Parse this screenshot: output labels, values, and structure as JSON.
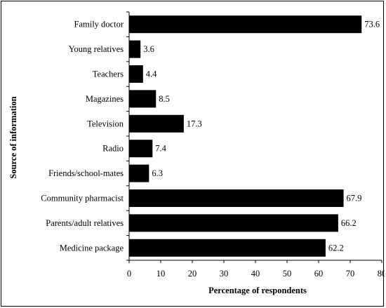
{
  "chart_data": {
    "type": "bar",
    "orientation": "horizontal",
    "categories": [
      "Family doctor",
      "Young relatives",
      "Teachers",
      "Magazines",
      "Television",
      "Radio",
      "Friends/school-mates",
      "Community pharmacist",
      "Parents/adult relatives",
      "Medicine package"
    ],
    "values": [
      73.6,
      3.6,
      4.4,
      8.5,
      17.3,
      7.4,
      6.3,
      67.9,
      66.2,
      62.2
    ],
    "value_labels": [
      "73.6",
      "3.6",
      "4.4",
      "8.5",
      "17.3",
      "7.4",
      "6.3",
      "67.9",
      "66.2",
      "62.2"
    ],
    "xlabel": "Percentage of respondents",
    "ylabel": "Source of information",
    "xlim": [
      0,
      80
    ],
    "xticks": [
      "0",
      "10",
      "20",
      "30",
      "40",
      "50",
      "60",
      "70",
      "80"
    ],
    "grid": false,
    "bar_color": "#000000"
  }
}
